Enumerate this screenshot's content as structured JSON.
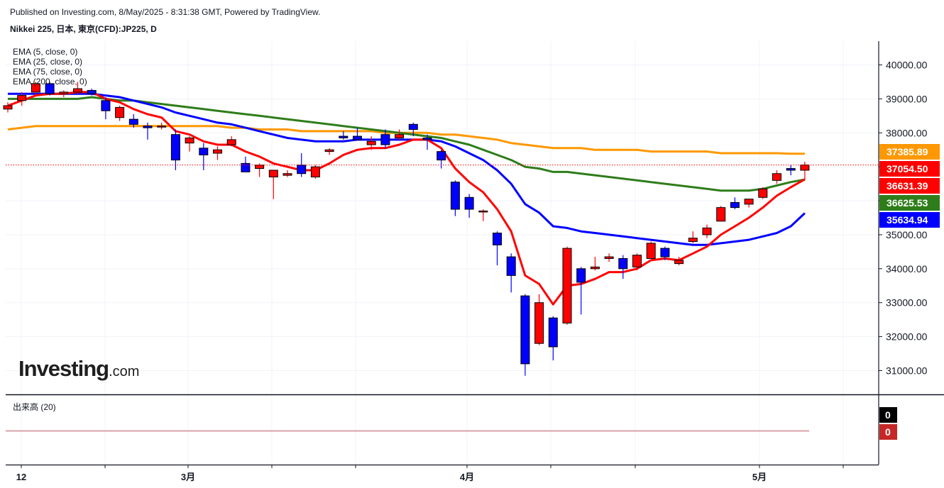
{
  "header": {
    "published": "Published on Investing.com, 8/May/2025 - 8:31:38 GMT, Powered by TradingView.",
    "instrument": "Nikkei 225, 日本, 東京(CFD):JP225, D"
  },
  "logo": {
    "main": "Investing",
    "suffix": ".com"
  },
  "volume_label": "出来高 (20)",
  "chart_data": {
    "type": "candlestick",
    "title": "Nikkei 225, 日本, 東京(CFD):JP225, D",
    "ylim": [
      30300,
      40700
    ],
    "y_ticks": [
      {
        "value": 31000,
        "label": "31000.00"
      },
      {
        "value": 32000,
        "label": "32000.00"
      },
      {
        "value": 33000,
        "label": "33000.00"
      },
      {
        "value": 34000,
        "label": "34000.00"
      },
      {
        "value": 35000,
        "label": "35000.00"
      },
      {
        "value": 36000,
        "label": "36000.00"
      },
      {
        "value": 37000,
        "label": "37000.00"
      },
      {
        "value": 38000,
        "label": "38000.00"
      },
      {
        "value": 39000,
        "label": "39000.00"
      },
      {
        "value": 40000,
        "label": "40000.00"
      }
    ],
    "x_ticks": [
      {
        "index": 1,
        "label": "12"
      },
      {
        "index": 13,
        "label": "3月"
      },
      {
        "index": 33,
        "label": "4月"
      },
      {
        "index": 54,
        "label": "5月"
      }
    ],
    "candles": [
      {
        "o": 38700,
        "h": 38900,
        "l": 38600,
        "c": 38800
      },
      {
        "o": 38950,
        "h": 39200,
        "l": 38800,
        "c": 39100
      },
      {
        "o": 39200,
        "h": 39500,
        "l": 39100,
        "c": 39450
      },
      {
        "o": 39450,
        "h": 39500,
        "l": 39100,
        "c": 39150
      },
      {
        "o": 39150,
        "h": 39250,
        "l": 39050,
        "c": 39200
      },
      {
        "o": 39200,
        "h": 39500,
        "l": 39150,
        "c": 39300
      },
      {
        "o": 39250,
        "h": 39300,
        "l": 39100,
        "c": 39150
      },
      {
        "o": 38950,
        "h": 39050,
        "l": 38400,
        "c": 38650
      },
      {
        "o": 38450,
        "h": 38800,
        "l": 38350,
        "c": 38750
      },
      {
        "o": 38400,
        "h": 38550,
        "l": 38150,
        "c": 38250
      },
      {
        "o": 38200,
        "h": 38300,
        "l": 37800,
        "c": 38150
      },
      {
        "o": 38200,
        "h": 38300,
        "l": 38100,
        "c": 38200
      },
      {
        "o": 37950,
        "h": 38100,
        "l": 36900,
        "c": 37200
      },
      {
        "o": 37700,
        "h": 37900,
        "l": 37450,
        "c": 37850
      },
      {
        "o": 37550,
        "h": 37700,
        "l": 36900,
        "c": 37350
      },
      {
        "o": 37400,
        "h": 37600,
        "l": 37200,
        "c": 37500
      },
      {
        "o": 37650,
        "h": 37900,
        "l": 37600,
        "c": 37800
      },
      {
        "o": 37100,
        "h": 37300,
        "l": 36900,
        "c": 36850
      },
      {
        "o": 36950,
        "h": 37100,
        "l": 36700,
        "c": 37050
      },
      {
        "o": 36700,
        "h": 36900,
        "l": 36050,
        "c": 36900
      },
      {
        "o": 36750,
        "h": 36900,
        "l": 36700,
        "c": 36800
      },
      {
        "o": 37050,
        "h": 37400,
        "l": 36700,
        "c": 36800
      },
      {
        "o": 36700,
        "h": 37050,
        "l": 36650,
        "c": 37000
      },
      {
        "o": 37450,
        "h": 37550,
        "l": 37350,
        "c": 37500
      },
      {
        "o": 37900,
        "h": 38050,
        "l": 37800,
        "c": 37850
      },
      {
        "o": 37900,
        "h": 38150,
        "l": 37800,
        "c": 37800
      },
      {
        "o": 37650,
        "h": 37900,
        "l": 37500,
        "c": 37750
      },
      {
        "o": 37950,
        "h": 38100,
        "l": 37550,
        "c": 37650
      },
      {
        "o": 37850,
        "h": 38100,
        "l": 37800,
        "c": 37950
      },
      {
        "o": 38250,
        "h": 38300,
        "l": 37900,
        "c": 38100
      },
      {
        "o": 37850,
        "h": 37950,
        "l": 37500,
        "c": 37800
      },
      {
        "o": 37450,
        "h": 37500,
        "l": 36950,
        "c": 37200
      },
      {
        "o": 36550,
        "h": 36600,
        "l": 35550,
        "c": 35750
      },
      {
        "o": 36100,
        "h": 36200,
        "l": 35500,
        "c": 35750
      },
      {
        "o": 35700,
        "h": 35750,
        "l": 35400,
        "c": 35700
      },
      {
        "o": 35050,
        "h": 35100,
        "l": 34100,
        "c": 34700
      },
      {
        "o": 34350,
        "h": 34450,
        "l": 33300,
        "c": 33800
      },
      {
        "o": 33200,
        "h": 33250,
        "l": 30850,
        "c": 31200
      },
      {
        "o": 31800,
        "h": 33250,
        "l": 31750,
        "c": 33000
      },
      {
        "o": 32550,
        "h": 32600,
        "l": 31300,
        "c": 31700
      },
      {
        "o": 32400,
        "h": 34650,
        "l": 32350,
        "c": 34600
      },
      {
        "o": 34000,
        "h": 34050,
        "l": 32650,
        "c": 33600
      },
      {
        "o": 34000,
        "h": 34350,
        "l": 33950,
        "c": 34050
      },
      {
        "o": 34300,
        "h": 34450,
        "l": 34200,
        "c": 34350
      },
      {
        "o": 34300,
        "h": 34400,
        "l": 33700,
        "c": 34000
      },
      {
        "o": 34050,
        "h": 34450,
        "l": 33950,
        "c": 34400
      },
      {
        "o": 34300,
        "h": 34800,
        "l": 34300,
        "c": 34750
      },
      {
        "o": 34600,
        "h": 34650,
        "l": 34250,
        "c": 34350
      },
      {
        "o": 34150,
        "h": 34350,
        "l": 34100,
        "c": 34250
      },
      {
        "o": 34800,
        "h": 35100,
        "l": 34750,
        "c": 34900
      },
      {
        "o": 35000,
        "h": 35300,
        "l": 34900,
        "c": 35200
      },
      {
        "o": 35400,
        "h": 35850,
        "l": 35400,
        "c": 35800
      },
      {
        "o": 35950,
        "h": 36100,
        "l": 35750,
        "c": 35800
      },
      {
        "o": 35900,
        "h": 36000,
        "l": 35800,
        "c": 36050
      },
      {
        "o": 36100,
        "h": 36400,
        "l": 36050,
        "c": 36350
      },
      {
        "o": 36600,
        "h": 36900,
        "l": 36500,
        "c": 36800
      },
      {
        "o": 36950,
        "h": 37050,
        "l": 36750,
        "c": 36900
      },
      {
        "o": 36900,
        "h": 37150,
        "l": 36600,
        "c": 37054.5
      }
    ],
    "series": [
      {
        "name": "EMA (5, close, 0)",
        "color": "#ff0000",
        "values": [
          38800,
          38950,
          39100,
          39150,
          39150,
          39200,
          39200,
          39000,
          38900,
          38700,
          38550,
          38450,
          38050,
          37950,
          37750,
          37650,
          37650,
          37450,
          37300,
          37100,
          37000,
          36900,
          36900,
          37100,
          37350,
          37500,
          37550,
          37550,
          37650,
          37800,
          37800,
          37550,
          36950,
          36550,
          36250,
          35750,
          35100,
          33800,
          33550,
          32950,
          33500,
          33550,
          33700,
          33900,
          33900,
          34000,
          34250,
          34300,
          34250,
          34450,
          34650,
          35000,
          35250,
          35500,
          35800,
          36150,
          36400,
          36631.39
        ]
      },
      {
        "name": "EMA (25, close, 0)",
        "color": "#0000ff",
        "values": [
          39150,
          39150,
          39150,
          39150,
          39150,
          39150,
          39150,
          39100,
          39050,
          38950,
          38850,
          38750,
          38600,
          38500,
          38400,
          38300,
          38250,
          38150,
          38050,
          37950,
          37850,
          37800,
          37750,
          37750,
          37750,
          37800,
          37800,
          37800,
          37800,
          37800,
          37800,
          37750,
          37600,
          37400,
          37200,
          36900,
          36500,
          35900,
          35650,
          35250,
          35200,
          35100,
          35050,
          35000,
          34950,
          34900,
          34850,
          34800,
          34750,
          34700,
          34700,
          34750,
          34800,
          34850,
          34950,
          35050,
          35250,
          35634.94
        ]
      },
      {
        "name": "EMA (75, close, 0)",
        "color": "#2e7d1a",
        "values": [
          39000,
          39000,
          39000,
          39000,
          39000,
          39000,
          39050,
          39000,
          38950,
          38950,
          38900,
          38850,
          38800,
          38750,
          38700,
          38650,
          38600,
          38550,
          38500,
          38450,
          38400,
          38350,
          38300,
          38250,
          38200,
          38150,
          38100,
          38050,
          38000,
          37950,
          37900,
          37850,
          37750,
          37650,
          37500,
          37350,
          37200,
          37000,
          36950,
          36850,
          36850,
          36800,
          36750,
          36700,
          36650,
          36600,
          36550,
          36500,
          36450,
          36400,
          36350,
          36300,
          36300,
          36300,
          36350,
          36450,
          36550,
          36625.53
        ]
      },
      {
        "name": "EMA (200, close, 0)",
        "color": "#ff9800",
        "values": [
          38100,
          38150,
          38200,
          38200,
          38200,
          38200,
          38200,
          38200,
          38200,
          38200,
          38200,
          38200,
          38200,
          38200,
          38200,
          38200,
          38150,
          38150,
          38100,
          38100,
          38100,
          38050,
          38050,
          38050,
          38050,
          38050,
          38050,
          38000,
          38000,
          38000,
          38000,
          37950,
          37950,
          37900,
          37850,
          37800,
          37700,
          37650,
          37600,
          37550,
          37550,
          37550,
          37500,
          37500,
          37500,
          37500,
          37450,
          37450,
          37450,
          37450,
          37450,
          37400,
          37400,
          37400,
          37400,
          37400,
          37385.89,
          37385.89
        ]
      }
    ],
    "last_price": {
      "value": 37054.5,
      "label": "37054.50",
      "color": "#ff0000"
    },
    "right_badges": [
      {
        "value": 37385.89,
        "label": "37385.89",
        "color": "#ff9800"
      },
      {
        "value": 37054.5,
        "label": "37054.50",
        "color": "#ff0000"
      },
      {
        "value": 36631.39,
        "label": "36631.39",
        "color": "#ff0000"
      },
      {
        "value": 36625.53,
        "label": "36625.53",
        "color": "#2e7d1a"
      },
      {
        "value": 35634.94,
        "label": "35634.94",
        "color": "#0000ff"
      }
    ],
    "volume_badges": [
      {
        "label": "0",
        "color": "#000000"
      },
      {
        "label": "0",
        "color": "#c62828"
      }
    ],
    "up_color": "#ff0000",
    "down_color": "#0000ff",
    "grid": true
  }
}
